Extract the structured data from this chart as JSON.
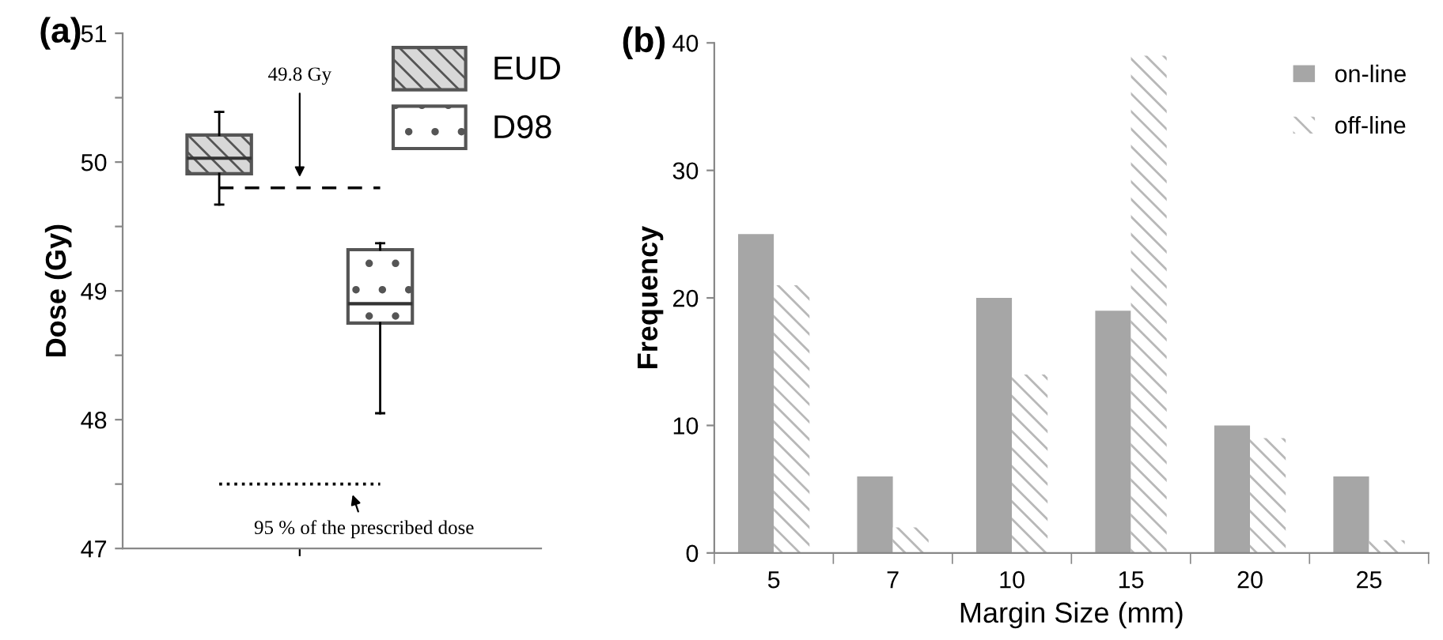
{
  "chart_data": [
    {
      "type": "box",
      "title": "(a)",
      "ylabel": "Dose (Gy)",
      "categories": [
        null,
        null
      ],
      "series": [
        {
          "name": "EUD",
          "color": "#555555",
          "boxes": [
            {
              "low": 49.67,
              "q1": 49.91,
              "median": 50.03,
              "q3": 50.21,
              "high": 50.39
            },
            null
          ]
        },
        {
          "name": "D98",
          "color": "#555555",
          "boxes": [
            null,
            {
              "low": 48.05,
              "q1": 48.75,
              "median": 48.9,
              "q3": 49.32,
              "high": 49.37
            }
          ]
        }
      ],
      "ylim": [
        47,
        51
      ],
      "yticks": [
        47,
        {
          "value": 47.5,
          "label": null
        },
        48,
        {
          "value": 48.5,
          "label": null
        },
        49,
        {
          "value": 49.5,
          "label": null
        },
        50,
        {
          "value": 50.5,
          "label": null
        },
        51
      ],
      "ref_lines": [
        {
          "axis": "y",
          "value": 49.8,
          "label": "49.8 Gy",
          "line_style": "dashed"
        },
        {
          "axis": "y",
          "value": 47.5,
          "label": "95 % of the prescribed dose",
          "line_style": "dotted"
        }
      ],
      "legend": "top right",
      "grid": false
    },
    {
      "type": "bar",
      "title": "(b)",
      "xlabel": "Margin Size (mm)",
      "ylabel": "Frequency",
      "categories": [
        "5",
        "7",
        "10",
        "15",
        "20",
        "25"
      ],
      "series": [
        {
          "name": "on-line",
          "color": "#a6a6a6",
          "values": [
            25,
            6,
            20,
            19,
            10,
            6
          ]
        },
        {
          "name": "off-line",
          "color": "#b8b8b8",
          "values": [
            21,
            2,
            14,
            39,
            9,
            1
          ]
        }
      ],
      "ylim": [
        0,
        40
      ],
      "yticks": [
        0,
        10,
        20,
        30,
        40
      ],
      "legend": "top right",
      "grid": false
    }
  ]
}
